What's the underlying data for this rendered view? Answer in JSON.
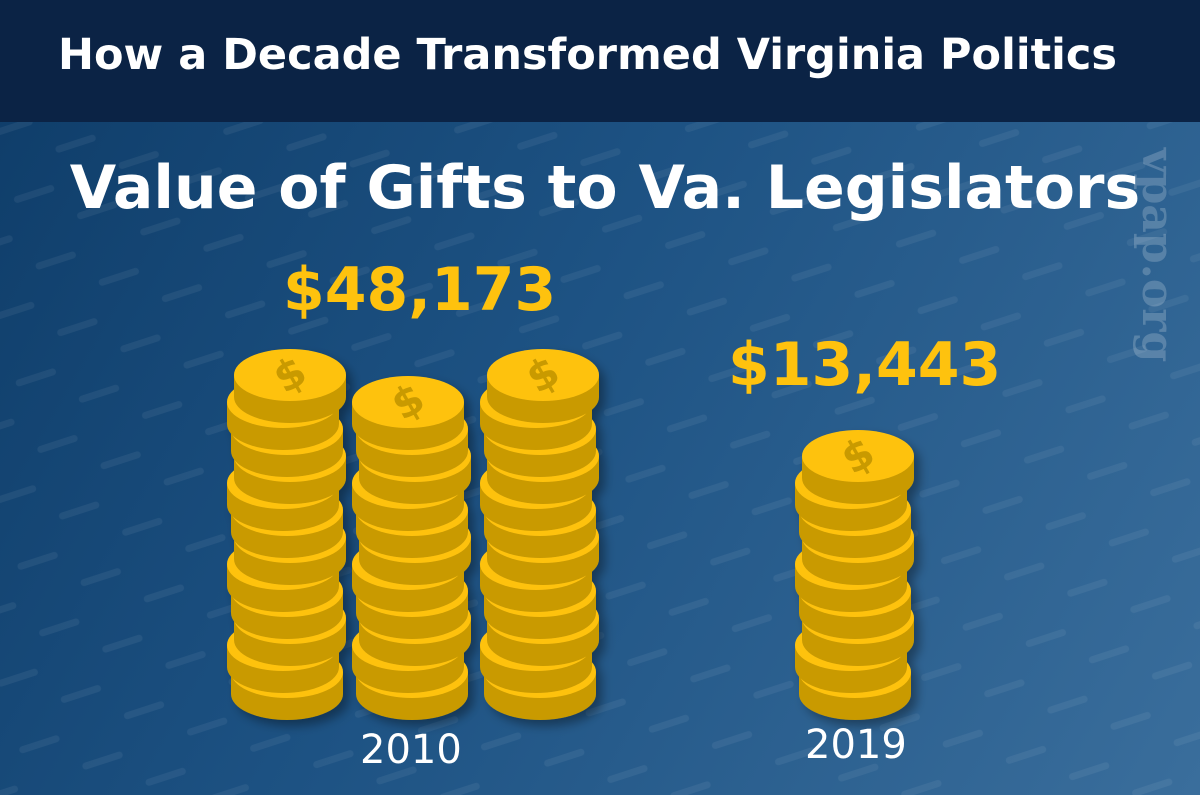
{
  "header": {
    "title": "How a Decade Transformed Virginia Politics"
  },
  "watermark": "vpap.org",
  "colors": {
    "header_bg": "#0b2345",
    "coin_face": "#fec20e",
    "coin_edge": "#c99a06",
    "value_text": "#fec20e"
  },
  "chart_data": {
    "type": "bar",
    "title": "Value of Gifts to Va. Legislators",
    "categories": [
      "2010",
      "2019"
    ],
    "values": [
      48173,
      13443
    ],
    "value_labels": [
      "$48,173",
      "$13,443"
    ],
    "mark": "coin-stacks",
    "icon": "dollar-coin-icon"
  }
}
